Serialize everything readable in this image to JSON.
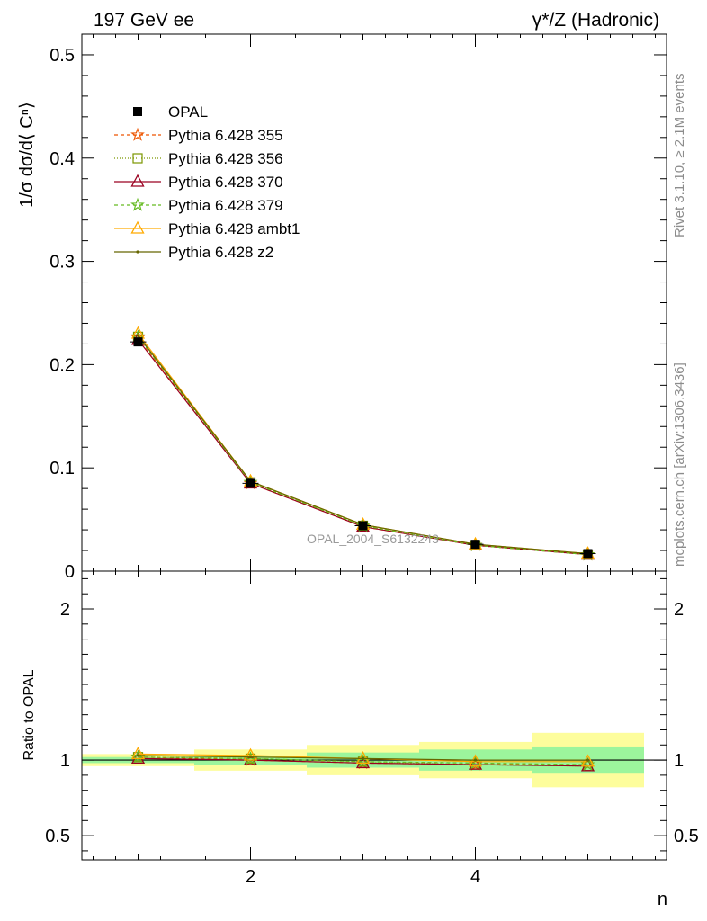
{
  "header": {
    "left": "197 GeV ee",
    "right": "γ*/Z (Hadronic)"
  },
  "side_text": {
    "rivet": "Rivet 3.1.10, ≥ 2.1M events",
    "mcplots": "mcplots.cern.ch [arXiv:1306.3436]"
  },
  "watermark": "OPAL_2004_S6132243",
  "colors": {
    "data": "#000000",
    "band_inner": "#9cf59c",
    "band_outer": "#fdfd9c"
  },
  "chart_data": [
    {
      "type": "line",
      "panel": "main",
      "ylabel": "1/σ dσ/d⟨ Cⁿ⟩",
      "xlim": [
        0.5,
        5.7
      ],
      "ylim": [
        0,
        0.52
      ],
      "yticks": [
        0,
        0.1,
        0.2,
        0.3,
        0.4,
        0.5
      ],
      "ytick_labels": [
        "0",
        "0.1",
        "0.2",
        "0.3",
        "0.4",
        "0.5"
      ],
      "x": [
        1,
        2,
        3,
        4,
        5
      ],
      "legend_position": "top-left",
      "data": {
        "name": "OPAL",
        "y": [
          0.222,
          0.085,
          0.044,
          0.026,
          0.017
        ]
      },
      "series": [
        {
          "name": "Pythia 6.428 355",
          "color": "#ee5500",
          "dash": "4,3",
          "marker": "star",
          "y": [
            0.226,
            0.085,
            0.043,
            0.025,
            0.016
          ]
        },
        {
          "name": "Pythia 6.428 356",
          "color": "#7b9700",
          "dash": "1,2",
          "marker": "square",
          "y": [
            0.227,
            0.086,
            0.044,
            0.025,
            0.016
          ]
        },
        {
          "name": "Pythia 6.428 370",
          "color": "#9b0020",
          "dash": "",
          "marker": "triangle",
          "y": [
            0.224,
            0.085,
            0.043,
            0.025,
            0.016
          ]
        },
        {
          "name": "Pythia 6.428 379",
          "color": "#66bb22",
          "dash": "4,3",
          "marker": "star",
          "y": [
            0.227,
            0.086,
            0.044,
            0.025,
            0.016
          ]
        },
        {
          "name": "Pythia 6.428 ambt1",
          "color": "#ffaa00",
          "dash": "",
          "marker": "triangle",
          "y": [
            0.23,
            0.087,
            0.045,
            0.026,
            0.017
          ]
        },
        {
          "name": "Pythia 6.428 z2",
          "color": "#666600",
          "dash": "",
          "marker": "dot",
          "y": [
            0.228,
            0.087,
            0.045,
            0.026,
            0.017
          ]
        }
      ]
    },
    {
      "type": "line",
      "panel": "ratio",
      "ylabel": "Ratio to OPAL",
      "xlabel": "n",
      "xlim": [
        0.5,
        5.7
      ],
      "ylim": [
        0.34,
        2.25
      ],
      "xticks": [
        2,
        4
      ],
      "xtick_labels": [
        "2",
        "4"
      ],
      "yticks": [
        0.5,
        1,
        2
      ],
      "ytick_labels": [
        "0.5",
        "1",
        "2"
      ],
      "bands": [
        {
          "x0": 0.5,
          "x1": 1.5,
          "inner": [
            0.98,
            1.02
          ],
          "outer": [
            0.96,
            1.04
          ]
        },
        {
          "x0": 1.5,
          "x1": 2.5,
          "inner": [
            0.97,
            1.03
          ],
          "outer": [
            0.93,
            1.07
          ]
        },
        {
          "x0": 2.5,
          "x1": 3.5,
          "inner": [
            0.95,
            1.05
          ],
          "outer": [
            0.9,
            1.1
          ]
        },
        {
          "x0": 3.5,
          "x1": 4.5,
          "inner": [
            0.93,
            1.07
          ],
          "outer": [
            0.88,
            1.12
          ]
        },
        {
          "x0": 4.5,
          "x1": 5.5,
          "inner": [
            0.91,
            1.09
          ],
          "outer": [
            0.82,
            1.18
          ]
        }
      ],
      "x": [
        1,
        2,
        3,
        4,
        5
      ],
      "series": [
        {
          "name": "Pythia 6.428 355",
          "y": [
            1.02,
            1.0,
            0.98,
            0.97,
            0.97
          ]
        },
        {
          "name": "Pythia 6.428 356",
          "y": [
            1.02,
            1.01,
            0.99,
            0.97,
            0.96
          ]
        },
        {
          "name": "Pythia 6.428 370",
          "y": [
            1.01,
            1.0,
            0.98,
            0.97,
            0.96
          ]
        },
        {
          "name": "Pythia 6.428 379",
          "y": [
            1.02,
            1.01,
            0.99,
            0.98,
            0.97
          ]
        },
        {
          "name": "Pythia 6.428 ambt1",
          "y": [
            1.04,
            1.03,
            1.01,
            0.99,
            0.99
          ]
        },
        {
          "name": "Pythia 6.428 z2",
          "y": [
            1.03,
            1.02,
            1.01,
            1.0,
            1.0
          ]
        }
      ]
    }
  ]
}
